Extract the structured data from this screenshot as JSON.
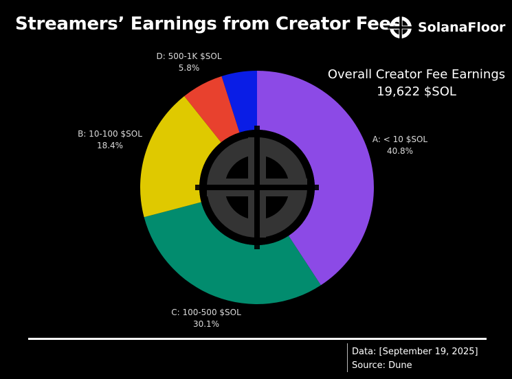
{
  "header": {
    "title": "Streamers’ Earnings from Creator Fees",
    "brand": "SolanaFloor"
  },
  "total": {
    "label": "Overall Creator Fee Earnings",
    "value": "19,622 $SOL"
  },
  "footer": {
    "data_note": "Data: [September 19, 2025]",
    "source_note": "Source: Dune"
  },
  "chart_data": {
    "type": "pie",
    "variant": "donut",
    "title": "Streamers’ Earnings from Creator Fees",
    "start_angle_deg": 0,
    "direction": "clockwise",
    "series": [
      {
        "name": "A: < 10 $SOL",
        "value": 40.8,
        "label": "40.8%",
        "color": "#8c4ae6"
      },
      {
        "name": "C: 100-500 $SOL",
        "value": 30.1,
        "label": "30.1%",
        "color": "#028c6e"
      },
      {
        "name": "B: 10-100 $SOL",
        "value": 18.4,
        "label": "18.4%",
        "color": "#dfc900"
      },
      {
        "name": "D: 500-1K $SOL",
        "value": 5.8,
        "label": "5.8%",
        "color": "#e8412e"
      },
      {
        "name": "",
        "value": 4.9,
        "label": "",
        "color": "#0a1de6"
      }
    ]
  }
}
